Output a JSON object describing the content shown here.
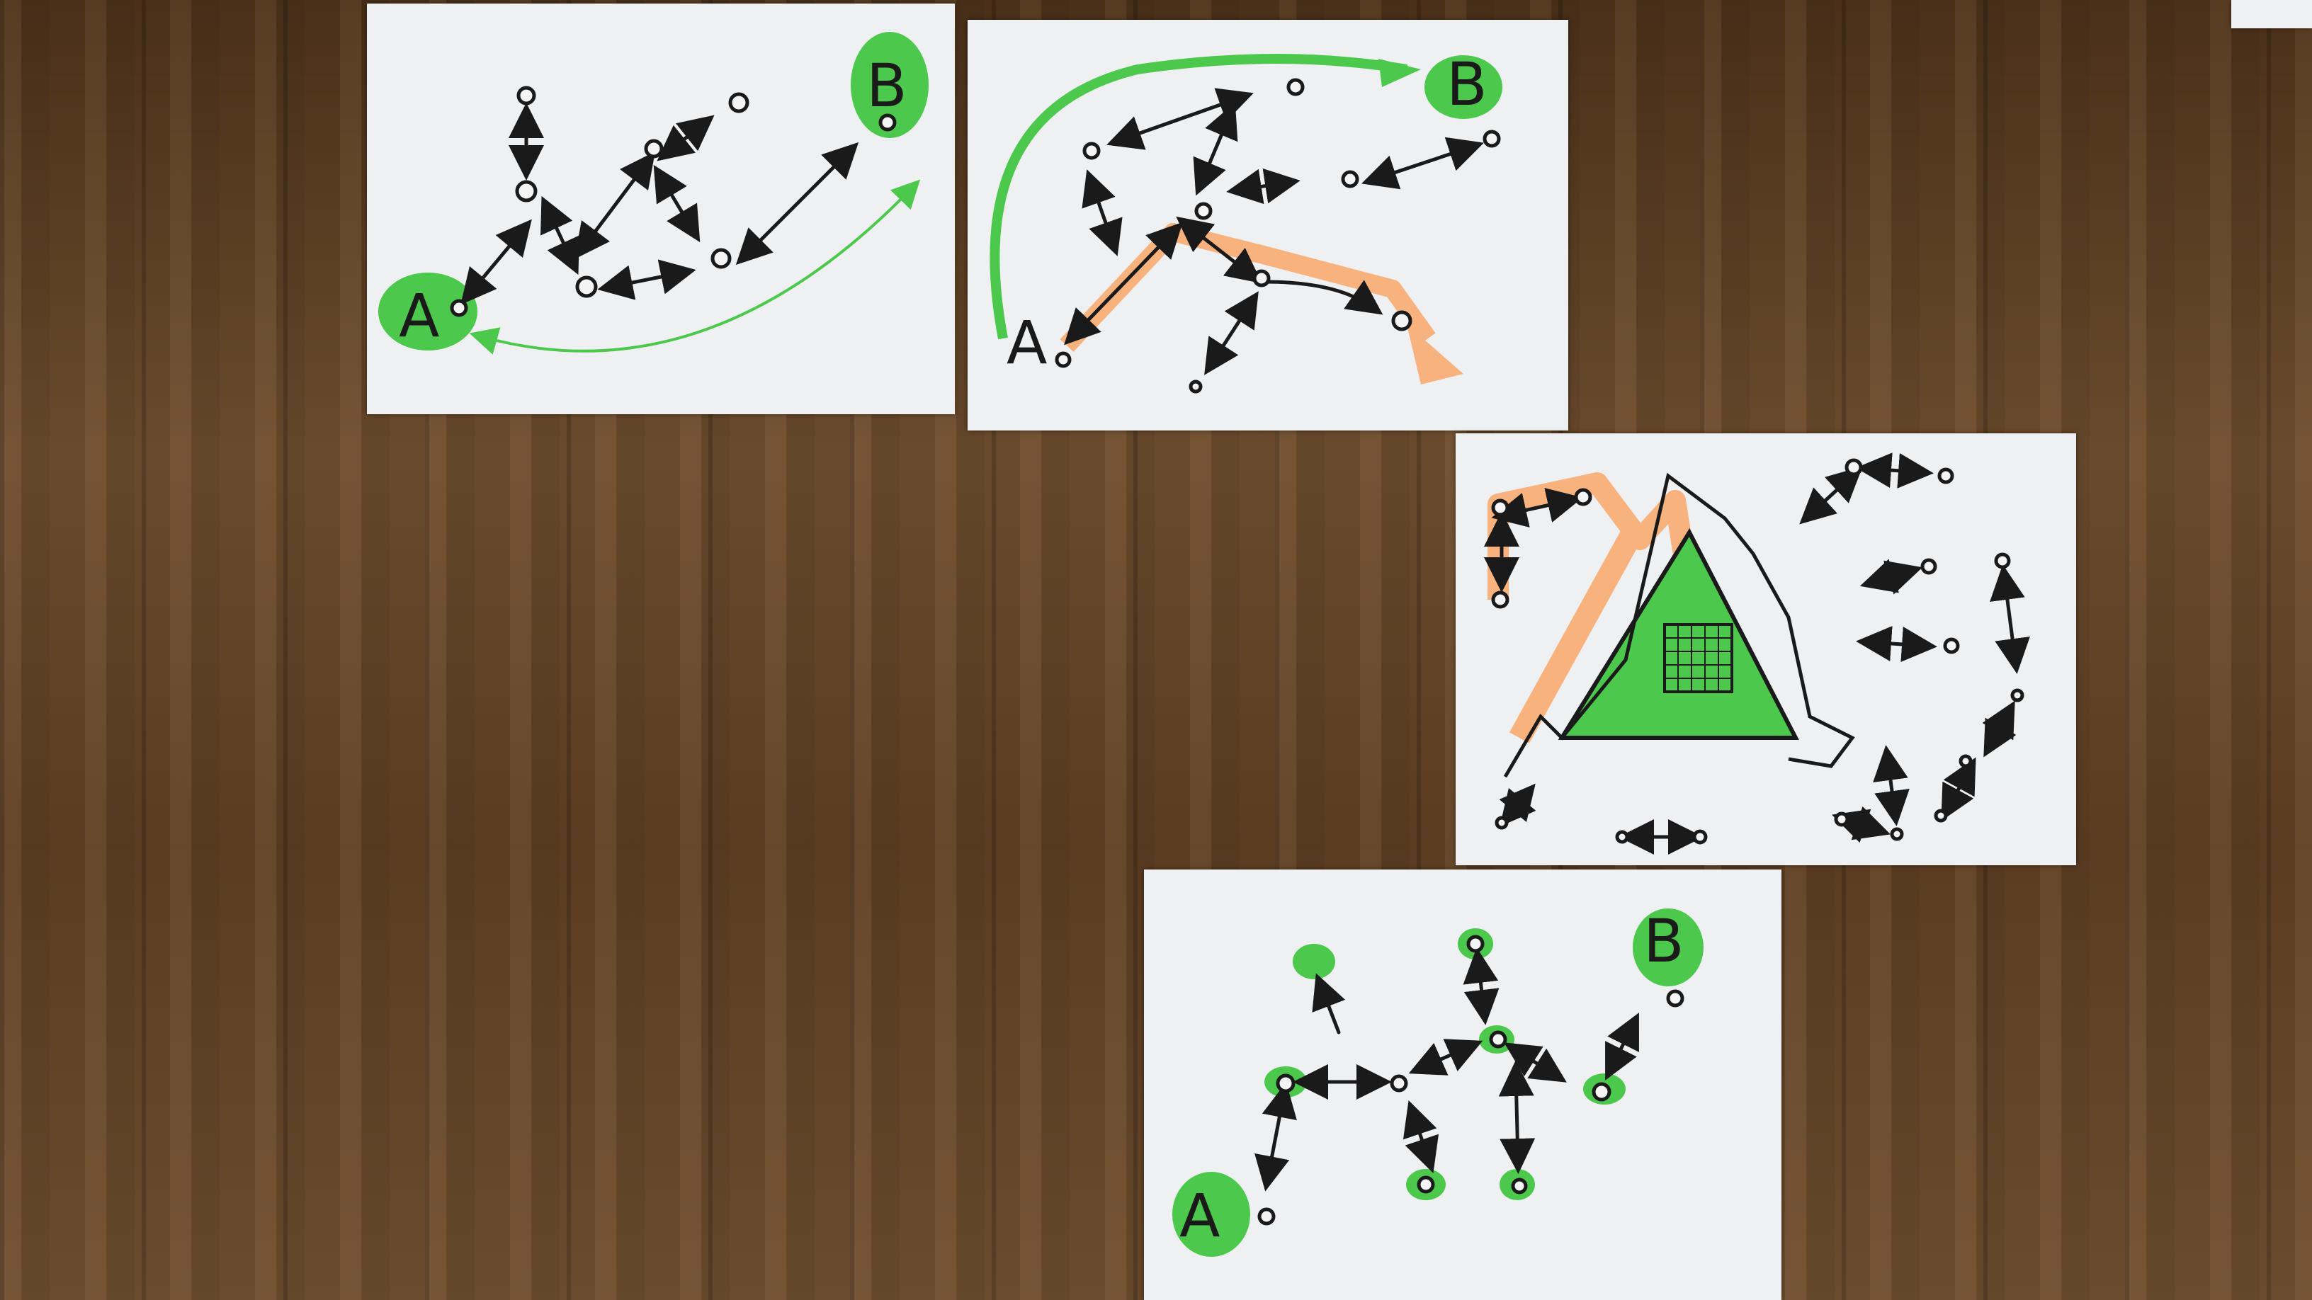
{
  "scene": {
    "description_free": true,
    "colors": {
      "paper": "#eef0f2",
      "ink": "#1a1a1a",
      "green": "#4cc94c",
      "orange": "#f7b27d",
      "floor": "#5a3d22"
    }
  },
  "sheets": [
    {
      "labels": {
        "start": "A",
        "end": "B"
      }
    },
    {
      "labels": {
        "start": "A",
        "end": "B"
      }
    },
    {
      "labels": {}
    },
    {
      "labels": {
        "start": "A",
        "end": "B"
      }
    }
  ]
}
